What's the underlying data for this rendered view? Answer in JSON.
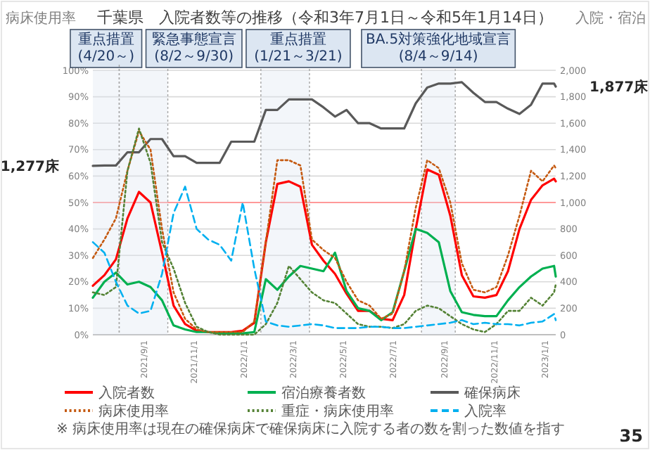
{
  "chart_data": {
    "type": "line",
    "title": "千葉県　入院者数等の推移（令和3年7月1日～令和5年1月14日）",
    "ylabel": "病床使用率",
    "y2label": "入院・宿泊",
    "x": [
      "2021-07-01",
      "2021-07-15",
      "2021-07-29",
      "2021-08-12",
      "2021-08-26",
      "2021-09-09",
      "2021-09-23",
      "2021-10-07",
      "2021-10-21",
      "2021-11-04",
      "2021-11-18",
      "2021-12-02",
      "2021-12-16",
      "2021-12-30",
      "2022-01-13",
      "2022-01-27",
      "2022-02-10",
      "2022-02-24",
      "2022-03-10",
      "2022-03-24",
      "2022-04-07",
      "2022-04-21",
      "2022-05-05",
      "2022-05-19",
      "2022-06-02",
      "2022-06-16",
      "2022-06-30",
      "2022-07-14",
      "2022-07-28",
      "2022-08-11",
      "2022-08-25",
      "2022-09-08",
      "2022-09-22",
      "2022-10-06",
      "2022-10-20",
      "2022-11-03",
      "2022-11-17",
      "2022-12-01",
      "2022-12-15",
      "2022-12-29",
      "2023-01-12",
      "2023-01-14"
    ],
    "xlim": [
      "2021-07-01",
      "2023-01-14"
    ],
    "ylim": [
      0,
      100
    ],
    "yticks": [
      {
        "value": 0,
        "label": "0%"
      },
      {
        "value": 10,
        "label": "10%"
      },
      {
        "value": 20,
        "label": "20%"
      },
      {
        "value": 30,
        "label": "30%"
      },
      {
        "value": 40,
        "label": "40%"
      },
      {
        "value": 50,
        "label": "50%"
      },
      {
        "value": 60,
        "label": "60%"
      },
      {
        "value": 70,
        "label": "70%"
      },
      {
        "value": 80,
        "label": "80%"
      },
      {
        "value": 90,
        "label": "90%"
      },
      {
        "value": 100,
        "label": "100%"
      }
    ],
    "y2lim": [
      0,
      2000
    ],
    "y2ticks": [
      0,
      200,
      400,
      600,
      800,
      {
        "value": 1000,
        "label": "1,000"
      },
      {
        "value": 1200,
        "label": "1,200"
      },
      {
        "value": 1400,
        "label": "1,400"
      },
      {
        "value": 1600,
        "label": "1,600"
      },
      {
        "value": 1800,
        "label": "1,800"
      },
      {
        "value": 2000,
        "label": "2,000"
      }
    ],
    "xticks": [
      {
        "value": "2021-09-01",
        "label": "2021/9/1"
      },
      {
        "value": "2021-11-01",
        "label": "2021/11/1"
      },
      {
        "value": "2022-01-01",
        "label": "2022/1/1"
      },
      {
        "value": "2022-03-01",
        "label": "2022/3/1"
      },
      {
        "value": "2022-05-01",
        "label": "2022/5/1"
      },
      {
        "value": "2022-07-01",
        "label": "2022/7/1"
      },
      {
        "value": "2022-09-01",
        "label": "2022/9/1"
      },
      {
        "value": "2022-11-01",
        "label": "2022/11/1"
      },
      {
        "value": "2023-01-01",
        "label": "2023/1/1"
      }
    ],
    "grid": "y",
    "legend": "bottom",
    "series": [
      {
        "name": "入院者数",
        "color": "#ff0000",
        "axis": "y2",
        "line_style": "solid",
        "values": [
          370,
          450,
          570,
          880,
          1080,
          1000,
          620,
          220,
          80,
          30,
          20,
          20,
          20,
          30,
          90,
          700,
          1140,
          1160,
          1120,
          680,
          560,
          460,
          310,
          180,
          180,
          120,
          110,
          300,
          800,
          1250,
          1210,
          900,
          450,
          290,
          280,
          300,
          480,
          800,
          1020,
          1130,
          1180,
          1160
        ]
      },
      {
        "name": "宿泊療養者数",
        "color": "#00b050",
        "axis": "y2",
        "line_style": "solid",
        "values": [
          280,
          400,
          470,
          380,
          400,
          360,
          260,
          70,
          40,
          20,
          20,
          10,
          10,
          10,
          20,
          420,
          340,
          440,
          520,
          500,
          480,
          620,
          330,
          200,
          180,
          110,
          170,
          480,
          800,
          770,
          700,
          330,
          170,
          150,
          140,
          140,
          260,
          360,
          440,
          500,
          520,
          440
        ]
      },
      {
        "name": "確保病床",
        "color": "#595959",
        "axis": "y2",
        "line_style": "solid",
        "values": [
          1277,
          1280,
          1280,
          1380,
          1380,
          1480,
          1480,
          1350,
          1350,
          1300,
          1300,
          1300,
          1460,
          1460,
          1460,
          1700,
          1700,
          1780,
          1780,
          1780,
          1720,
          1650,
          1700,
          1600,
          1600,
          1560,
          1560,
          1560,
          1750,
          1870,
          1900,
          1900,
          1910,
          1830,
          1760,
          1760,
          1710,
          1670,
          1740,
          1900,
          1900,
          1877
        ]
      },
      {
        "name": "病床使用率",
        "color": "#c55a11",
        "line_style": "dotted",
        "values": [
          29,
          36,
          44,
          62,
          77,
          70,
          40,
          16,
          6,
          2,
          1,
          1,
          1,
          1,
          5,
          35,
          66,
          66,
          64,
          36,
          32,
          29,
          20,
          13,
          11,
          6,
          8,
          24,
          48,
          66,
          63,
          50,
          27,
          17,
          16,
          18,
          30,
          45,
          62,
          58,
          64,
          63
        ]
      },
      {
        "name": "重症・病床使用率",
        "color": "#548235",
        "line_style": "dotted",
        "values": [
          16,
          15,
          18,
          62,
          78,
          65,
          35,
          25,
          12,
          3,
          1,
          0,
          0,
          0,
          0,
          4,
          12,
          26,
          21,
          16,
          13,
          12,
          8,
          4,
          3,
          3,
          2.5,
          4,
          9,
          11,
          10,
          7,
          4,
          2,
          1,
          4,
          9,
          9,
          14,
          11,
          16,
          19
        ]
      },
      {
        "name": "入院率",
        "color": "#00b0f0",
        "line_style": "dashed",
        "values": [
          35,
          31,
          20,
          11,
          8,
          9,
          23,
          46,
          56,
          40,
          36,
          34,
          28,
          50,
          25,
          5,
          3.5,
          3,
          3.5,
          4,
          3.5,
          2.5,
          2.5,
          2.5,
          3,
          3,
          2.5,
          2.5,
          3,
          3.5,
          4,
          4.5,
          5.5,
          4,
          4.5,
          4,
          4,
          3.5,
          4.5,
          5,
          7.8,
          5.5
        ]
      }
    ],
    "ref_lines": [
      {
        "axis": "y",
        "value": 50,
        "color": "#ff9999"
      }
    ],
    "bands": [
      {
        "axis": "x",
        "from": "2021-07-01",
        "to": "2021-08-02",
        "label": "重点措置\n(4/20～)",
        "color": "#dce6f2"
      },
      {
        "axis": "x",
        "from": "2021-08-02",
        "to": "2021-09-30",
        "label": "緊急事態宣言\n(8/2～9/30)",
        "color": "#dce6f2"
      },
      {
        "axis": "x",
        "from": "2022-01-21",
        "to": "2022-03-21",
        "label": "重点措置\n(1/21～3/21)",
        "color": "#dce6f2"
      },
      {
        "axis": "x",
        "from": "2022-08-04",
        "to": "2022-09-14",
        "label": "BA.5対策強化地域宣言\n(8/4～9/14)",
        "color": "#dce6f2"
      }
    ],
    "annotations": [
      "1,277床",
      "1,877床",
      "※ 病床使用率は現在の確保病床で確保病床に入院する者の数を割った数値を指す",
      "35"
    ]
  }
}
